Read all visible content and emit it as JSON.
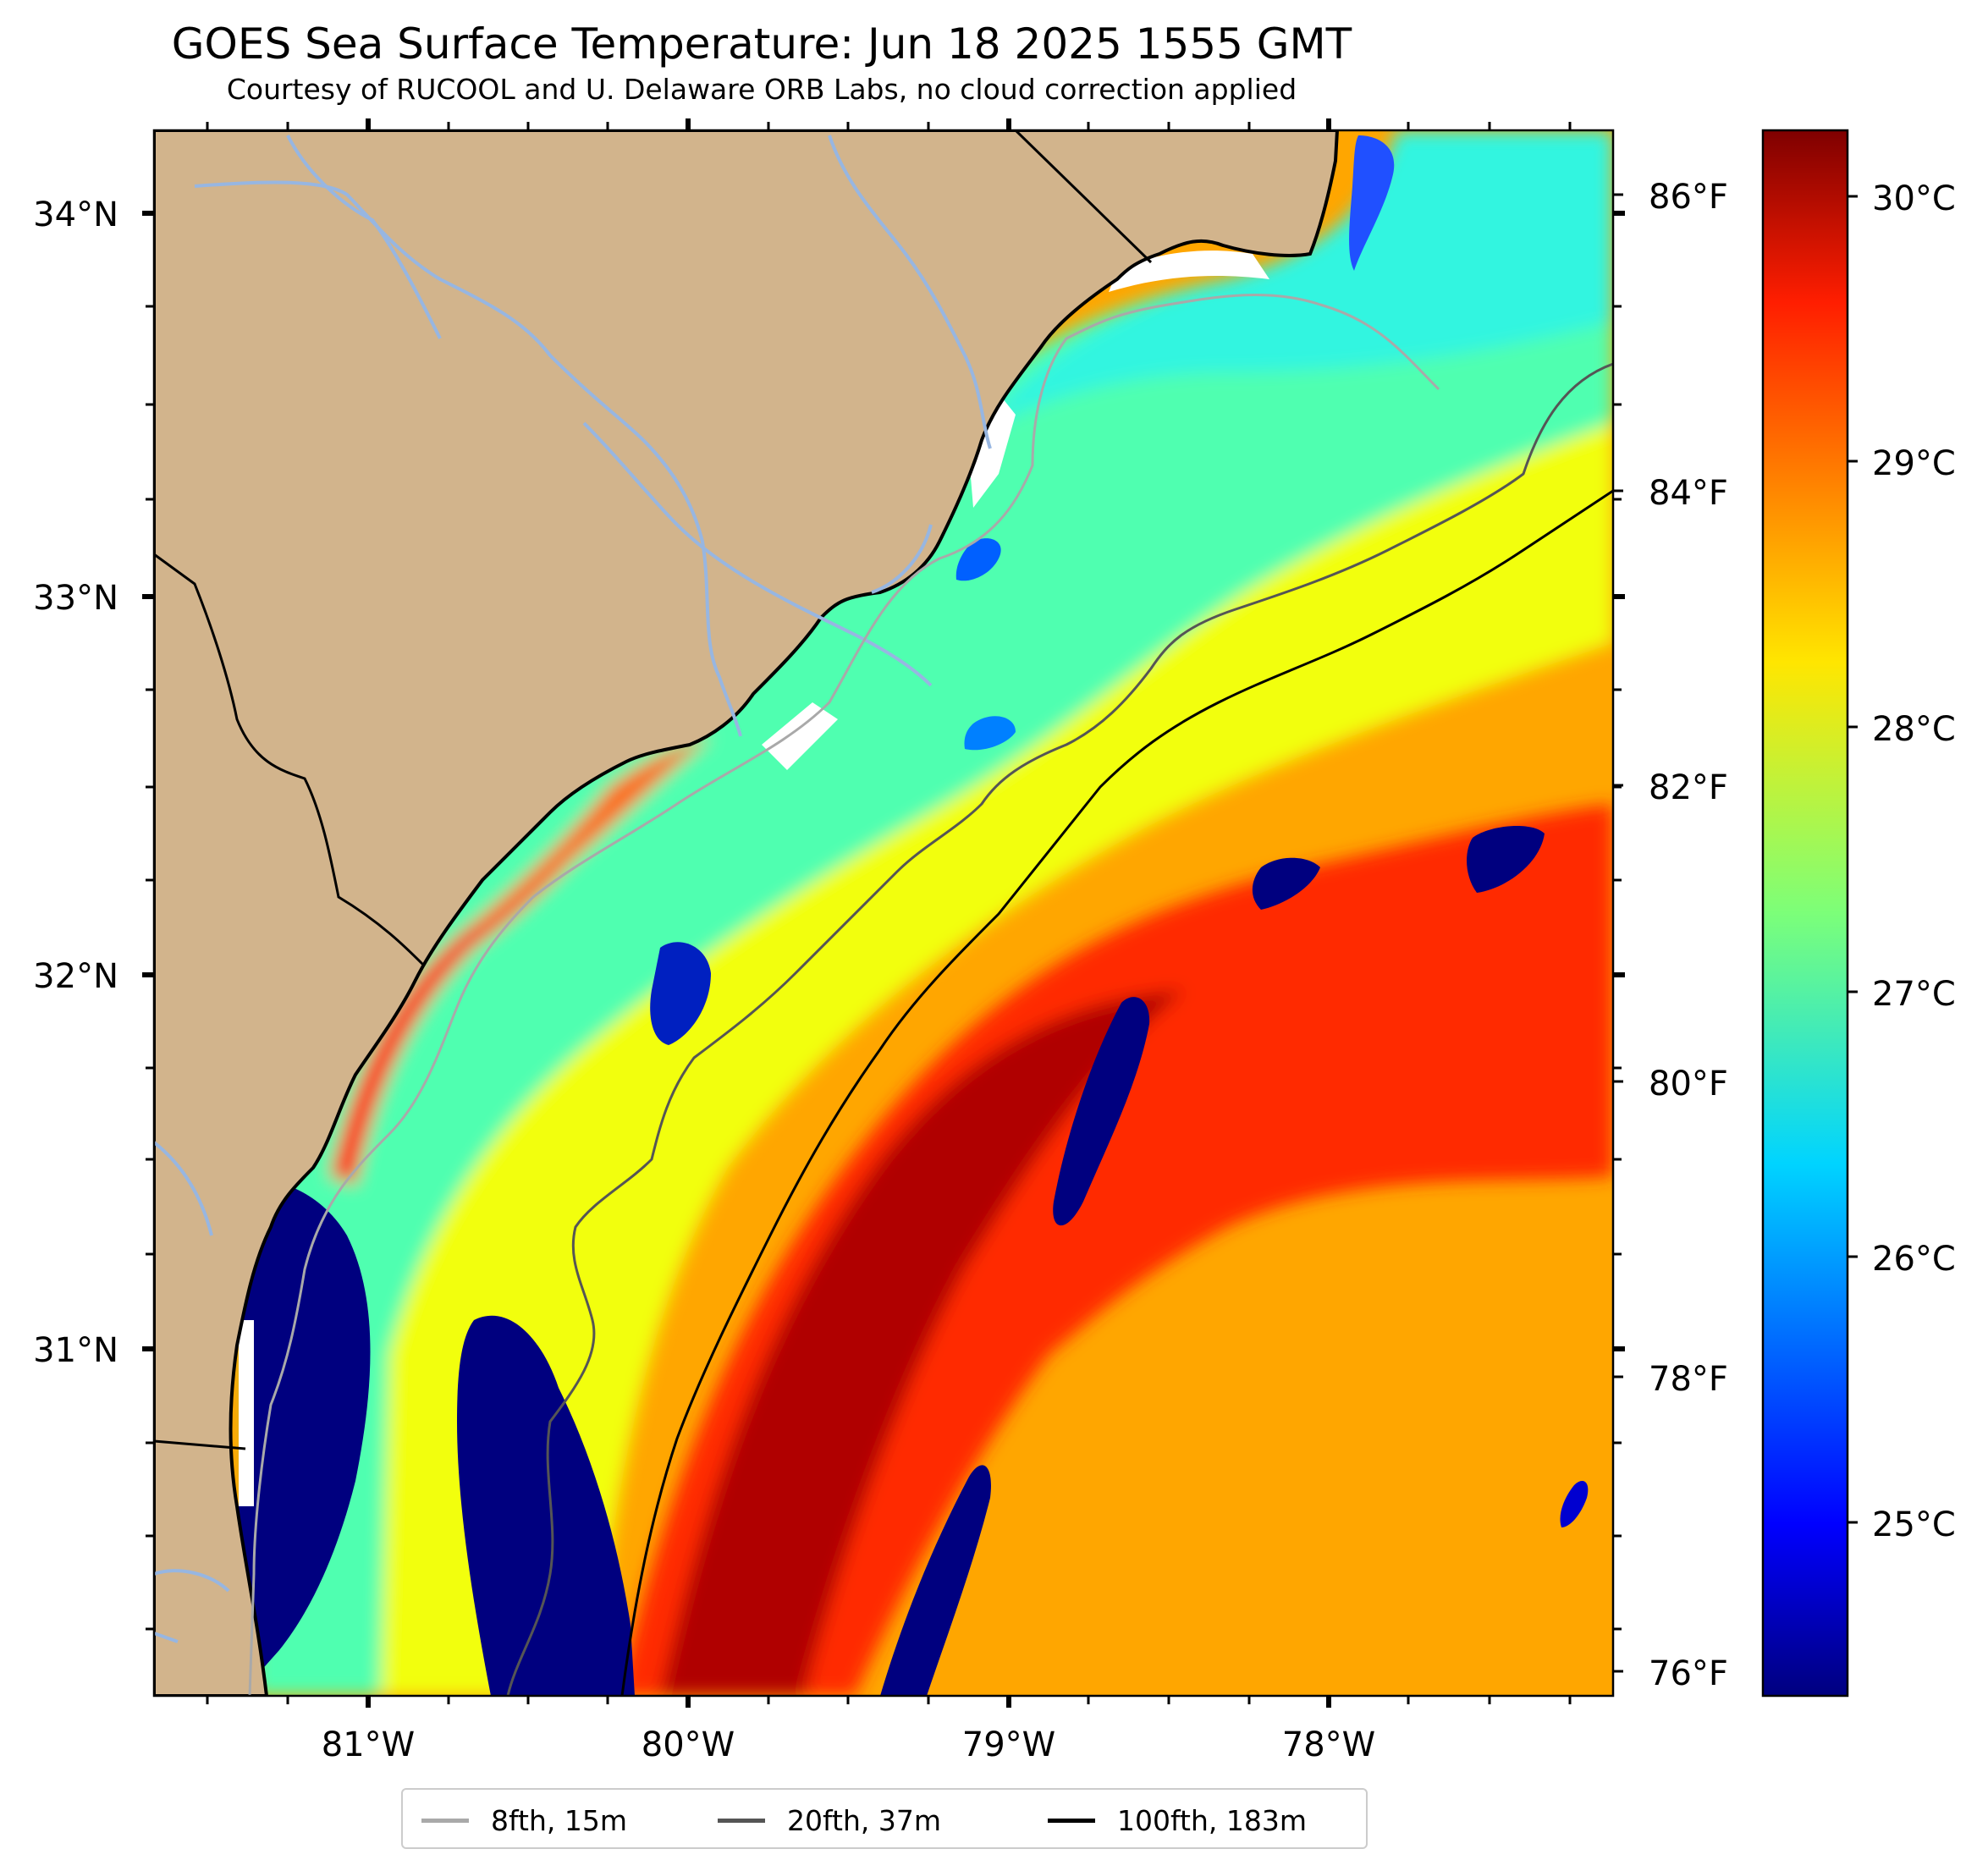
{
  "title": "GOES Sea Surface Temperature: Jun 18 2025 1555 GMT",
  "subtitle": "Courtesy of RUCOOL and U. Delaware ORB Labs, no cloud correction applied",
  "map": {
    "lat_ticks": [
      "34°N",
      "33°N",
      "32°N",
      "31°N"
    ],
    "lon_ticks": [
      "81°W",
      "80°W",
      "79°W",
      "78°W"
    ],
    "fahrenheit_ticks": [
      "86°F",
      "84°F",
      "82°F",
      "80°F",
      "78°F",
      "76°F"
    ],
    "land_color": "#d2b48c",
    "river_color": "#97b6e1"
  },
  "colorbar": {
    "colormap": "jet",
    "celsius_ticks": [
      "30°C",
      "29°C",
      "28°C",
      "27°C",
      "26°C",
      "25°C"
    ],
    "range_c": [
      24.3,
      30.2
    ]
  },
  "legend": [
    {
      "label": "8fth, 15m",
      "color": "#a9a9a9"
    },
    {
      "label": "20fth, 37m",
      "color": "#555555"
    },
    {
      "label": "100fth, 183m",
      "color": "#000000"
    }
  ]
}
